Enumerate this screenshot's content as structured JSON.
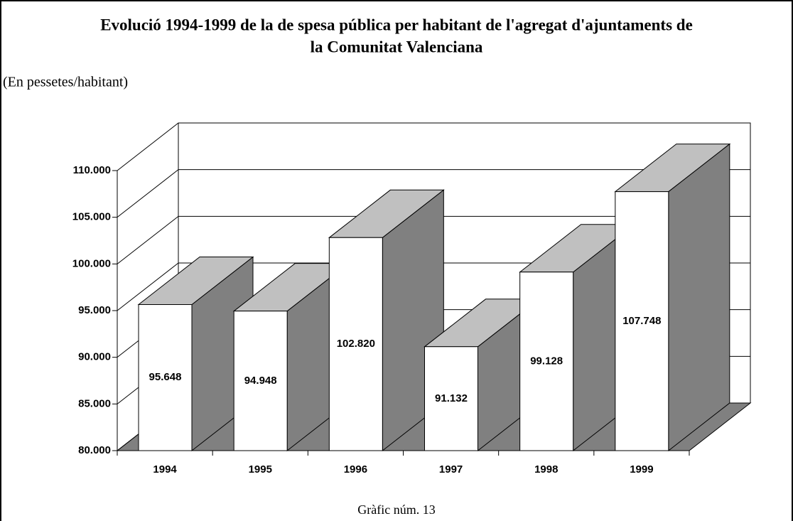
{
  "chart_data": {
    "type": "bar3d",
    "title": [
      "Evolució 1994-1999 de la de spesa pública per habitant de l'agregat d'ajuntaments de",
      "la Comunitat Valenciana"
    ],
    "subtitle": "(En pessetes/habitant)",
    "caption": "Gràfic núm. 13",
    "categories": [
      "1994",
      "1995",
      "1996",
      "1997",
      "1998",
      "1999"
    ],
    "values": [
      95648,
      94948,
      102820,
      91132,
      99128,
      107748
    ],
    "value_labels": [
      "95.648",
      "94.948",
      "102.820",
      "91.132",
      "99.128",
      "107.748"
    ],
    "colors": {
      "front": "#ffffff",
      "top": "#c0c0c0",
      "side": "#808080",
      "floor": "#808080"
    },
    "ylim": [
      80000,
      110000
    ],
    "yticks": [
      {
        "value": 80000,
        "label": "80.000"
      },
      {
        "value": 85000,
        "label": "85.000"
      },
      {
        "value": 90000,
        "label": "90.000"
      },
      {
        "value": 95000,
        "label": "95.000"
      },
      {
        "value": 100000,
        "label": "100.000"
      },
      {
        "value": 105000,
        "label": "105.000"
      },
      {
        "value": 110000,
        "label": "110.000"
      }
    ],
    "grid": true
  }
}
